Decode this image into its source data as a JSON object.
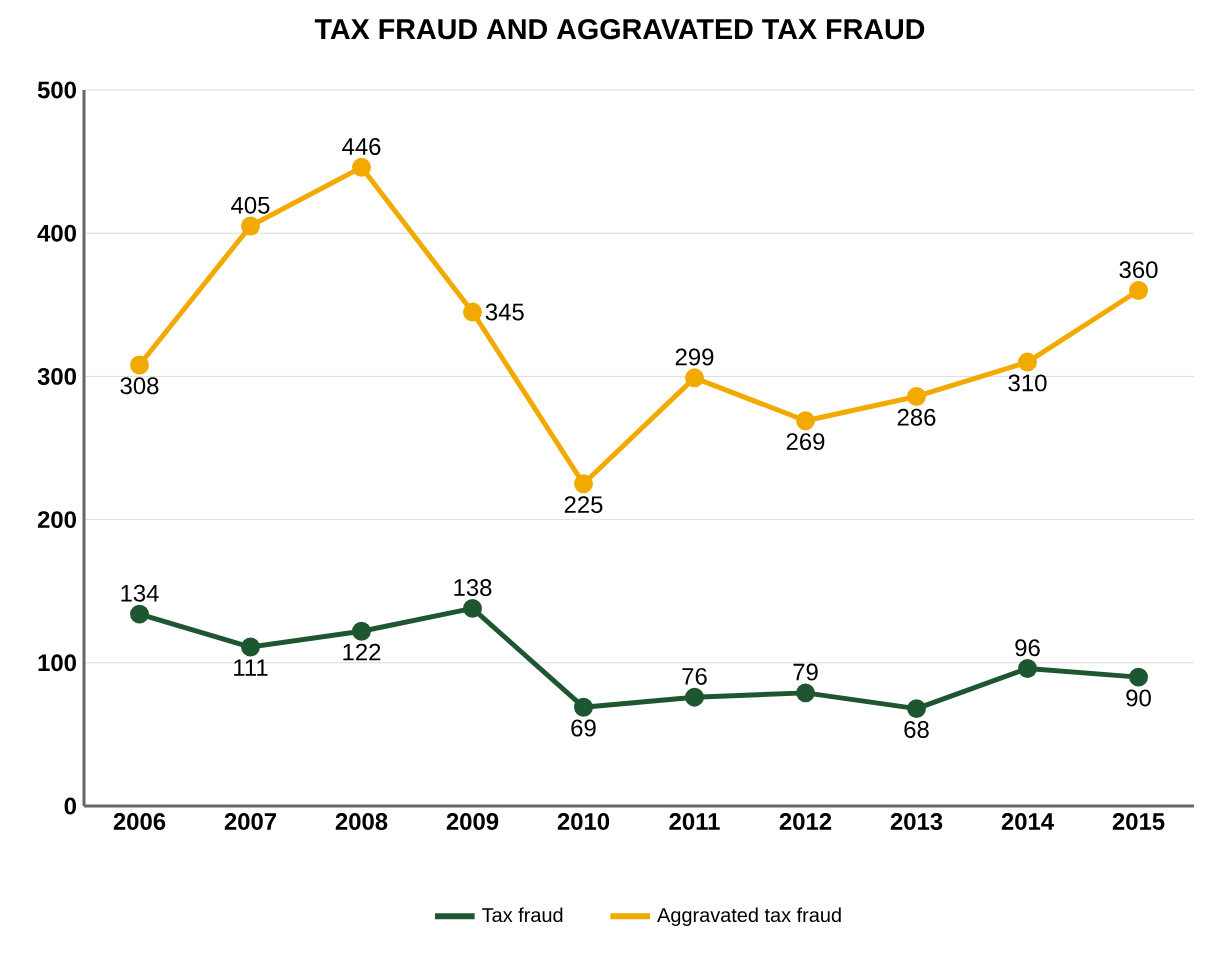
{
  "chart_data": {
    "type": "line",
    "title": "TAX FRAUD AND AGGRAVATED TAX FRAUD",
    "categories": [
      "2006",
      "2007",
      "2008",
      "2009",
      "2010",
      "2011",
      "2012",
      "2013",
      "2014",
      "2015"
    ],
    "series": [
      {
        "name": "Tax fraud",
        "color": "#1e5631",
        "values": [
          134,
          111,
          122,
          138,
          69,
          76,
          79,
          68,
          96,
          90
        ]
      },
      {
        "name": "Aggravated tax fraud",
        "color": "#f2a900",
        "values": [
          308,
          405,
          446,
          345,
          225,
          299,
          269,
          286,
          310,
          360
        ]
      }
    ],
    "ylim": [
      0,
      500
    ],
    "yticks": [
      0,
      100,
      200,
      300,
      400,
      500
    ],
    "grid": "y",
    "legend": "bottom",
    "marker": "circle",
    "line_style": "solid",
    "data_labels": true
  }
}
